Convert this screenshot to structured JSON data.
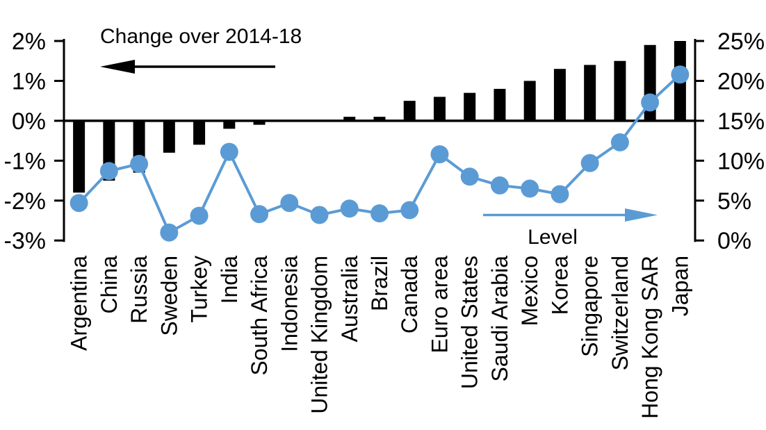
{
  "chart_data": {
    "type": "combo",
    "title": "",
    "categories": [
      "Argentina",
      "China",
      "Russia",
      "Sweden",
      "Turkey",
      "India",
      "South Africa",
      "Indonesia",
      "United Kingdom",
      "Australia",
      "Brazil",
      "Canada",
      "Euro area",
      "United States",
      "Saudi Arabia",
      "Mexico",
      "Korea",
      "Singapore",
      "Switzerland",
      "Hong Kong SAR",
      "Japan"
    ],
    "series": [
      {
        "name": "Change over 2014-18",
        "type": "bar",
        "axis": "left",
        "color": "#000000",
        "values": [
          -1.8,
          -1.5,
          -1.3,
          -0.8,
          -0.6,
          -0.2,
          -0.1,
          0.0,
          0.0,
          0.1,
          0.1,
          0.5,
          0.6,
          0.7,
          0.8,
          1.0,
          1.3,
          1.4,
          1.5,
          1.9,
          2.0
        ]
      },
      {
        "name": "Level",
        "type": "line",
        "axis": "right",
        "color": "#5b9bd5",
        "values": [
          4.7,
          8.7,
          9.6,
          1.0,
          3.1,
          11.1,
          3.3,
          4.7,
          3.2,
          4.0,
          3.4,
          3.8,
          10.8,
          8.0,
          6.9,
          6.5,
          5.8,
          9.7,
          12.3,
          17.3,
          20.8
        ]
      }
    ],
    "axes": {
      "left": {
        "min": -3,
        "max": 2,
        "tick_values": [
          2,
          1,
          0,
          -1,
          -2,
          -3
        ],
        "ticks": [
          "2%",
          "1%",
          "0%",
          "-1%",
          "-2%",
          "-3%"
        ]
      },
      "right": {
        "min": 0,
        "max": 25,
        "tick_values": [
          25,
          20,
          15,
          10,
          5,
          0
        ],
        "ticks": [
          "25%",
          "20%",
          "15%",
          "10%",
          "5%",
          "0%"
        ]
      }
    },
    "annotations": {
      "change_label": "Change over 2014-18",
      "level_label": "Level"
    },
    "grid": false,
    "legend_position": "in-plot-arrows",
    "colors": {
      "bar": "#000000",
      "line": "#5b9bd5",
      "background": "#ffffff"
    }
  }
}
